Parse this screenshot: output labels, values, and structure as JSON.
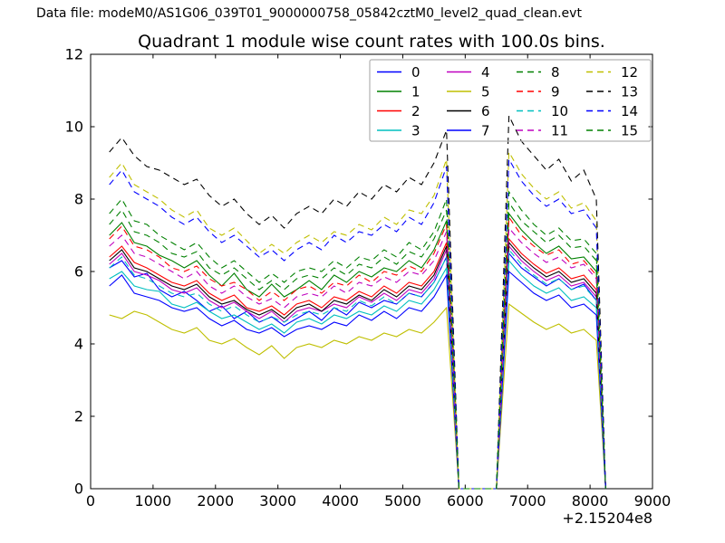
{
  "header": {
    "data_file": "Data file: modeM0/AS1G06_039T01_9000000758_05842cztM0_level2_quad_clean.evt"
  },
  "chart_data": {
    "type": "line",
    "title": "Quadrant 1 module wise count rates with 100.0s bins.",
    "xlabel": "",
    "ylabel": "",
    "x_offset_label": "+2.15204e8",
    "xlim": [
      0,
      9000
    ],
    "ylim": [
      0,
      12
    ],
    "xticks": [
      0,
      1000,
      2000,
      3000,
      4000,
      5000,
      6000,
      7000,
      8000,
      9000
    ],
    "yticks": [
      0,
      2,
      4,
      6,
      8,
      10,
      12
    ],
    "grid": false,
    "legend": {
      "location": "upper right",
      "columns": 4,
      "frame_color": "#b2b2b2",
      "fill": "none"
    },
    "x": [
      300,
      500,
      700,
      900,
      1100,
      1300,
      1500,
      1700,
      1900,
      2100,
      2300,
      2500,
      2700,
      2900,
      3100,
      3300,
      3500,
      3700,
      3900,
      4100,
      4300,
      4500,
      4700,
      4900,
      5100,
      5300,
      5500,
      5700,
      5900,
      6100,
      6300,
      6500,
      6700,
      6900,
      7100,
      7300,
      7500,
      7700,
      7900,
      8100,
      8250
    ],
    "series": [
      {
        "name": "0",
        "color": "#0000ff",
        "line_style": "solid",
        "values": [
          6.1,
          6.3,
          5.85,
          5.95,
          5.5,
          5.3,
          5.45,
          5.2,
          4.9,
          5.05,
          4.7,
          4.9,
          4.6,
          4.75,
          4.5,
          4.7,
          4.9,
          4.65,
          5.0,
          4.8,
          5.15,
          5.0,
          5.2,
          5.1,
          5.4,
          5.3,
          5.7,
          6.4,
          0,
          0,
          0,
          0,
          6.5,
          6.1,
          5.85,
          5.6,
          5.8,
          5.5,
          5.65,
          5.2,
          0
        ]
      },
      {
        "name": "1",
        "color": "#008000",
        "line_style": "solid",
        "values": [
          7.0,
          7.35,
          6.8,
          6.7,
          6.45,
          6.3,
          6.1,
          6.3,
          5.9,
          5.6,
          5.95,
          5.5,
          5.3,
          5.65,
          5.3,
          5.5,
          5.75,
          5.5,
          5.9,
          5.7,
          6.0,
          5.85,
          6.1,
          6.0,
          6.3,
          6.1,
          6.6,
          7.4,
          0,
          0,
          0,
          0,
          7.6,
          7.15,
          6.8,
          6.5,
          6.7,
          6.35,
          6.4,
          6.0,
          0
        ]
      },
      {
        "name": "2",
        "color": "#ff0000",
        "line_style": "solid",
        "values": [
          6.4,
          6.7,
          6.25,
          6.1,
          5.9,
          5.7,
          5.6,
          5.75,
          5.4,
          5.2,
          5.35,
          5.0,
          4.9,
          5.05,
          4.8,
          5.1,
          5.2,
          5.0,
          5.3,
          5.2,
          5.45,
          5.3,
          5.6,
          5.4,
          5.7,
          5.6,
          6.0,
          6.8,
          0,
          0,
          0,
          0,
          6.9,
          6.5,
          6.2,
          5.95,
          6.1,
          5.8,
          5.9,
          5.5,
          0
        ]
      },
      {
        "name": "3",
        "color": "#00bfbf",
        "line_style": "solid",
        "values": [
          5.8,
          6.0,
          5.6,
          5.5,
          5.45,
          5.1,
          5.0,
          5.15,
          4.9,
          4.7,
          4.8,
          4.6,
          4.4,
          4.55,
          4.3,
          4.6,
          4.7,
          4.55,
          4.8,
          4.7,
          4.9,
          4.8,
          5.05,
          4.9,
          5.2,
          5.1,
          5.5,
          6.1,
          0,
          0,
          0,
          0,
          6.3,
          5.9,
          5.6,
          5.4,
          5.55,
          5.2,
          5.3,
          5.0,
          0
        ]
      },
      {
        "name": "4",
        "color": "#bf00bf",
        "line_style": "solid",
        "values": [
          6.2,
          6.5,
          6.0,
          5.9,
          5.75,
          5.5,
          5.4,
          5.55,
          5.2,
          5.0,
          5.15,
          4.9,
          4.7,
          4.9,
          4.6,
          4.9,
          5.0,
          4.9,
          5.1,
          5.0,
          5.3,
          5.15,
          5.4,
          5.2,
          5.5,
          5.4,
          5.8,
          6.6,
          0,
          0,
          0,
          0,
          6.7,
          6.3,
          6.0,
          5.75,
          5.9,
          5.6,
          5.7,
          5.3,
          0
        ]
      },
      {
        "name": "5",
        "color": "#bfbf00",
        "line_style": "solid",
        "values": [
          4.8,
          4.7,
          4.9,
          4.8,
          4.6,
          4.4,
          4.3,
          4.45,
          4.1,
          4.0,
          4.15,
          3.9,
          3.7,
          3.95,
          3.6,
          3.9,
          4.0,
          3.9,
          4.1,
          4.0,
          4.2,
          4.1,
          4.3,
          4.2,
          4.4,
          4.3,
          4.6,
          5.0,
          0,
          0,
          0,
          0,
          5.1,
          4.85,
          4.6,
          4.4,
          4.55,
          4.3,
          4.4,
          4.1,
          0
        ]
      },
      {
        "name": "6",
        "color": "#000000",
        "line_style": "solid",
        "values": [
          6.3,
          6.6,
          6.1,
          6.0,
          5.8,
          5.6,
          5.5,
          5.65,
          5.3,
          5.1,
          5.2,
          4.95,
          4.8,
          4.95,
          4.7,
          5.0,
          5.1,
          4.9,
          5.2,
          5.1,
          5.35,
          5.2,
          5.5,
          5.3,
          5.6,
          5.5,
          5.9,
          6.7,
          0,
          0,
          0,
          0,
          6.8,
          6.4,
          6.1,
          5.85,
          6.0,
          5.7,
          5.8,
          5.4,
          0
        ]
      },
      {
        "name": "7",
        "color": "#0000ff",
        "line_style": "solid",
        "values": [
          5.6,
          5.9,
          5.4,
          5.3,
          5.2,
          5.0,
          4.9,
          5.0,
          4.7,
          4.5,
          4.65,
          4.4,
          4.3,
          4.45,
          4.2,
          4.4,
          4.5,
          4.4,
          4.6,
          4.5,
          4.8,
          4.65,
          4.9,
          4.7,
          5.0,
          4.9,
          5.3,
          5.9,
          0,
          0,
          0,
          0,
          6.0,
          5.7,
          5.4,
          5.2,
          5.35,
          5.0,
          5.1,
          4.8,
          0
        ]
      },
      {
        "name": "8",
        "color": "#008000",
        "line_style": "dashed",
        "values": [
          7.3,
          7.7,
          7.1,
          7.0,
          6.8,
          6.5,
          6.4,
          6.55,
          6.1,
          5.9,
          6.1,
          5.8,
          5.5,
          5.75,
          5.5,
          5.8,
          5.9,
          5.8,
          6.1,
          5.9,
          6.2,
          6.1,
          6.4,
          6.2,
          6.55,
          6.4,
          6.9,
          7.7,
          0,
          0,
          0,
          0,
          7.9,
          7.4,
          7.1,
          6.8,
          7.0,
          6.65,
          6.7,
          6.3,
          0
        ]
      },
      {
        "name": "9",
        "color": "#ff0000",
        "line_style": "dashed",
        "values": [
          6.9,
          7.25,
          6.7,
          6.6,
          6.4,
          6.1,
          6.0,
          6.15,
          5.8,
          5.6,
          5.7,
          5.5,
          5.2,
          5.45,
          5.2,
          5.5,
          5.6,
          5.4,
          5.7,
          5.6,
          5.9,
          5.7,
          6.0,
          5.9,
          6.15,
          6.0,
          6.5,
          7.3,
          0,
          0,
          0,
          0,
          7.5,
          7.0,
          6.7,
          6.45,
          6.6,
          6.2,
          6.3,
          5.9,
          0
        ]
      },
      {
        "name": "10",
        "color": "#00bfbf",
        "line_style": "dashed",
        "values": [
          6.1,
          6.4,
          5.9,
          5.8,
          5.6,
          5.4,
          5.3,
          5.4,
          5.1,
          4.9,
          5.05,
          4.8,
          4.6,
          4.75,
          4.6,
          4.8,
          4.9,
          4.8,
          5.0,
          4.9,
          5.2,
          5.05,
          5.3,
          5.1,
          5.4,
          5.3,
          5.7,
          6.4,
          0,
          0,
          0,
          0,
          6.6,
          6.2,
          5.9,
          5.65,
          5.8,
          5.5,
          5.6,
          5.2,
          0
        ]
      },
      {
        "name": "11",
        "color": "#bf00bf",
        "line_style": "dashed",
        "values": [
          6.7,
          7.0,
          6.5,
          6.4,
          6.2,
          6.0,
          5.8,
          6.0,
          5.6,
          5.4,
          5.6,
          5.3,
          5.1,
          5.25,
          5.0,
          5.3,
          5.4,
          5.3,
          5.6,
          5.4,
          5.7,
          5.6,
          5.85,
          5.7,
          6.0,
          5.9,
          6.3,
          7.1,
          0,
          0,
          0,
          0,
          7.2,
          6.8,
          6.5,
          6.25,
          6.4,
          6.1,
          6.2,
          5.8,
          0
        ]
      },
      {
        "name": "12",
        "color": "#bfbf00",
        "line_style": "dashed",
        "values": [
          8.6,
          9.0,
          8.4,
          8.2,
          8.0,
          7.7,
          7.5,
          7.7,
          7.2,
          7.0,
          7.2,
          6.85,
          6.5,
          6.75,
          6.5,
          6.8,
          7.0,
          6.8,
          7.1,
          7.0,
          7.3,
          7.15,
          7.5,
          7.3,
          7.7,
          7.6,
          8.1,
          9.1,
          0,
          0,
          0,
          0,
          9.3,
          8.7,
          8.3,
          8.0,
          8.2,
          7.75,
          7.9,
          7.4,
          0
        ]
      },
      {
        "name": "13",
        "color": "#000000",
        "line_style": "dashed",
        "values": [
          9.3,
          9.7,
          9.2,
          8.9,
          8.8,
          8.6,
          8.4,
          8.55,
          8.1,
          7.8,
          8.0,
          7.6,
          7.3,
          7.55,
          7.2,
          7.6,
          7.8,
          7.6,
          8.0,
          7.8,
          8.2,
          8.0,
          8.4,
          8.2,
          8.6,
          8.4,
          9.0,
          9.9,
          0,
          0,
          0,
          0,
          10.3,
          9.6,
          9.2,
          8.8,
          9.1,
          8.5,
          8.8,
          8.0,
          0
        ]
      },
      {
        "name": "14",
        "color": "#0000ff",
        "line_style": "dashed",
        "values": [
          8.4,
          8.8,
          8.2,
          8.0,
          7.8,
          7.5,
          7.3,
          7.5,
          7.1,
          6.8,
          7.0,
          6.7,
          6.4,
          6.6,
          6.3,
          6.6,
          6.8,
          6.6,
          7.0,
          6.8,
          7.1,
          7.0,
          7.3,
          7.1,
          7.5,
          7.3,
          7.9,
          8.9,
          0,
          0,
          0,
          0,
          9.1,
          8.5,
          8.1,
          7.8,
          8.0,
          7.6,
          7.7,
          7.2,
          0
        ]
      },
      {
        "name": "15",
        "color": "#008000",
        "line_style": "dashed",
        "values": [
          7.6,
          8.0,
          7.4,
          7.3,
          7.0,
          6.8,
          6.6,
          6.8,
          6.4,
          6.1,
          6.3,
          6.0,
          5.7,
          5.95,
          5.7,
          6.0,
          6.1,
          6.0,
          6.3,
          6.1,
          6.4,
          6.3,
          6.6,
          6.4,
          6.8,
          6.6,
          7.1,
          8.0,
          0,
          0,
          0,
          0,
          8.2,
          7.7,
          7.3,
          7.0,
          7.2,
          6.85,
          6.9,
          6.5,
          0
        ]
      }
    ]
  }
}
